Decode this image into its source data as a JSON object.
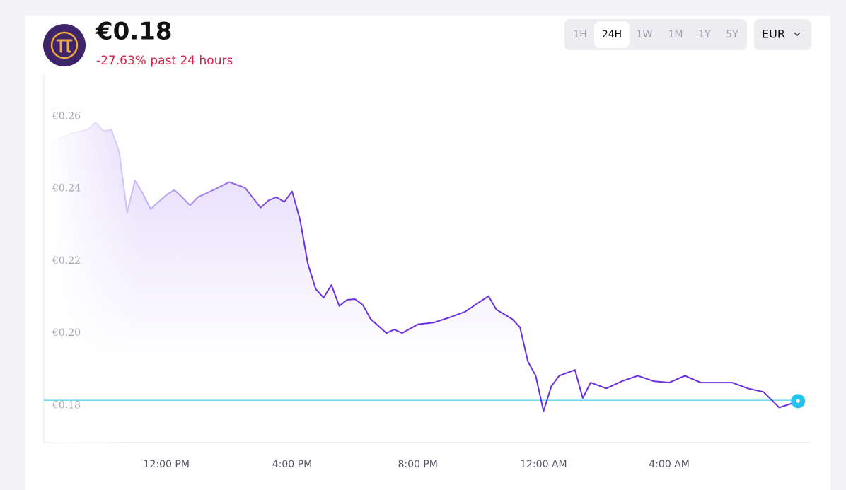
{
  "header": {
    "price": "€0.18",
    "change": "-27.63% past 24 hours"
  },
  "tabs": [
    "1H",
    "24H",
    "1W",
    "1M",
    "1Y",
    "5Y"
  ],
  "active_tab": "24H",
  "currency": "EUR",
  "chart_data": {
    "type": "line",
    "color": "#6b2fe0",
    "x": [
      8.3,
      8.5,
      9,
      9.5,
      9.75,
      10,
      10.25,
      10.5,
      10.75,
      11,
      11.25,
      11.5,
      11.75,
      12,
      12.25,
      12.5,
      12.75,
      13,
      13.5,
      14,
      14.5,
      15,
      15.25,
      15.5,
      15.75,
      16,
      16.25,
      16.5,
      16.75,
      17,
      17.25,
      17.5,
      17.75,
      18,
      18.25,
      18.5,
      19,
      19.25,
      19.5,
      20,
      20.5,
      21,
      21.5,
      22,
      22.25,
      22.5,
      23,
      23.25,
      23.5,
      23.75,
      24,
      24.25,
      24.5,
      25,
      25.25,
      25.5,
      26,
      26.5,
      27,
      27.5,
      28,
      28.5,
      29,
      29.5,
      30,
      30.5,
      31,
      31.5,
      32,
      32.1
    ],
    "values": [
      0.2529,
      0.2533,
      0.2553,
      0.2563,
      0.2582,
      0.2559,
      0.2563,
      0.25,
      0.2333,
      0.2422,
      0.2386,
      0.2343,
      0.2363,
      0.2382,
      0.2396,
      0.2376,
      0.2353,
      0.2376,
      0.2396,
      0.2418,
      0.2402,
      0.2347,
      0.2367,
      0.2376,
      0.2363,
      0.2392,
      0.2314,
      0.2192,
      0.2122,
      0.2098,
      0.2133,
      0.2075,
      0.2092,
      0.2094,
      0.2078,
      0.2039,
      0.2,
      0.201,
      0.2,
      0.2024,
      0.2029,
      0.2043,
      0.2059,
      0.2088,
      0.2102,
      0.2065,
      0.2039,
      0.2016,
      0.1922,
      0.1882,
      0.1784,
      0.1853,
      0.1882,
      0.1898,
      0.182,
      0.1863,
      0.1847,
      0.1867,
      0.1882,
      0.1867,
      0.1863,
      0.1882,
      0.1863,
      0.1863,
      0.1863,
      0.1847,
      0.1837,
      0.1794,
      0.1808,
      0.1812
    ],
    "current_price": 0.1814,
    "current_color": "#22c3ee",
    "xlim": [
      8.1,
      32.5
    ],
    "ylim": [
      0.1697,
      0.2716
    ],
    "xticks": [
      {
        "value": 12,
        "label": "12:00 PM"
      },
      {
        "value": 16,
        "label": "4:00 PM"
      },
      {
        "value": 20,
        "label": "8:00 PM"
      },
      {
        "value": 24,
        "label": "12:00 AM"
      },
      {
        "value": 28,
        "label": "4:00 AM"
      }
    ],
    "yticks": [
      {
        "value": 0.18,
        "label": "€0.18"
      },
      {
        "value": 0.2,
        "label": "€0.20"
      },
      {
        "value": 0.22,
        "label": "€0.22"
      },
      {
        "value": 0.24,
        "label": "€0.24"
      },
      {
        "value": 0.26,
        "label": "€0.26"
      }
    ],
    "grid": false
  }
}
